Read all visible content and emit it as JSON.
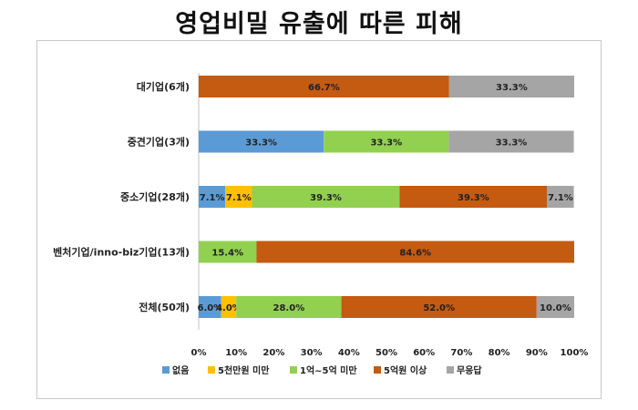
{
  "title": "영업비밀 유출에 따른 피해",
  "chart_data": {
    "type": "bar",
    "orientation": "horizontal",
    "stacked": true,
    "percent": true,
    "title": "영업비밀 유출에 따른 피해",
    "categories": [
      "대기업(6개)",
      "중견기업(3개)",
      "중소기업(28개)",
      "벤처기업/inno-biz기업(13개)",
      "전체(50개)"
    ],
    "series": [
      {
        "name": "없음",
        "color": "#5b9bd5",
        "values": [
          0,
          33.3,
          7.1,
          0,
          6.0
        ],
        "labels": [
          "",
          "33.3%",
          "7.1%",
          "",
          "6.0%"
        ]
      },
      {
        "name": "5천만원 미만",
        "color": "#ffc000",
        "values": [
          0,
          0,
          7.1,
          0,
          4.0
        ],
        "labels": [
          "",
          "",
          "7.1%",
          "",
          "4.0%"
        ]
      },
      {
        "name": "1억~5억 미만",
        "color": "#92d050",
        "values": [
          0,
          33.3,
          39.3,
          15.4,
          28.0
        ],
        "labels": [
          "",
          "33.3%",
          "39.3%",
          "15.4%",
          "28.0%"
        ]
      },
      {
        "name": "5억원 이상",
        "color": "#c55a11",
        "values": [
          66.7,
          0,
          39.3,
          84.6,
          52.0
        ],
        "labels": [
          "66.7%",
          "",
          "39.3%",
          "84.6%",
          "52.0%"
        ]
      },
      {
        "name": "무응답",
        "color": "#a5a5a5",
        "values": [
          33.3,
          33.3,
          7.1,
          0,
          10.0
        ],
        "labels": [
          "33.3%",
          "33.3%",
          "7.1%",
          "",
          "10.0%"
        ]
      }
    ],
    "xlim": [
      0,
      100
    ],
    "xticks": [
      "0%",
      "10%",
      "20%",
      "30%",
      "40%",
      "50%",
      "60%",
      "70%",
      "80%",
      "90%",
      "100%"
    ],
    "grid": false,
    "legend": "bottom"
  }
}
